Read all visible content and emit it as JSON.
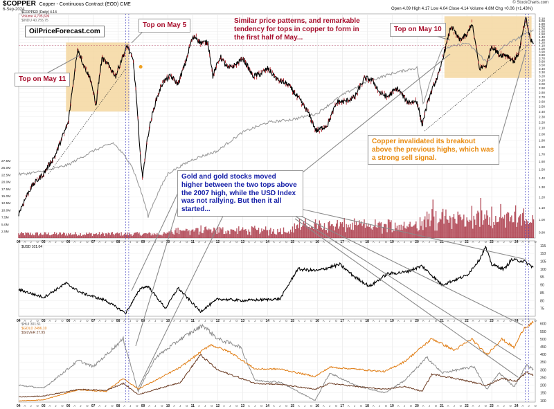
{
  "header": {
    "symbol": "$COPPER",
    "description": "Copper - Continuous Contract (EOD) CME",
    "date": "6-Sep-2024",
    "quote": "Open 4.09  High 4.17  Low 4.04  Close 4.14  Volume 4.8M  Chg +0.06 (+1.43%)",
    "brand": "© StockCharts.com",
    "watermark": "OilPriceForecast.com"
  },
  "legends": {
    "copper_line": "$COPPER (Daily) 4.14",
    "volume_line": "Volume 4,795,609",
    "indu_line": "$INDU 40,755.75",
    "usd_line": "$USD 101.04",
    "hui_line": "$HUI 301.51",
    "gold_line": "$GOLD 2496.10",
    "silver_line": "$SILVER 27.95"
  },
  "annotations": {
    "top_may5": "Top on May 5",
    "top_may11": "Top on May 11",
    "top_may10": "Top on May 10",
    "similar": "Similar price patterns, and remarkable tendency for tops in copper to form in the first half of May...",
    "gold": "Gold and gold stocks moved higher between the two tops above the 2007 high, while the USD Index was not rallying. But then it all started...",
    "copper_invalid": "Copper invalidated its breakout above the previous highs, which was a strong sell signal."
  },
  "colors": {
    "copper": "#000000",
    "copper_up": "#000000",
    "copper_down": "#b11b25",
    "indu": "#9b9b9b",
    "volume": "#a52a3a",
    "usd": "#000000",
    "hui": "#8b8b8b",
    "gold": "#e07b10",
    "silver": "#6a3a21",
    "highlight": "#f5d7a0",
    "annotation_red": "#a8102e",
    "annotation_blue": "#1620a8",
    "annotation_orange": "#e98b10",
    "guide_blue": "#3b3bbf"
  },
  "chart_data": [
    {
      "type": "line",
      "panel": "copper",
      "title": "$COPPER",
      "y_scale": "log",
      "y_axis_right": [
        0.9,
        1.0,
        1.1,
        1.2,
        1.3,
        1.4,
        1.5,
        1.6,
        1.7,
        1.8,
        1.9,
        2.0,
        2.1,
        2.2,
        2.3,
        2.4,
        2.5,
        2.6,
        2.7,
        2.8,
        2.9,
        3.0,
        3.1,
        3.2,
        3.3,
        3.4,
        3.5,
        3.6,
        3.7,
        3.8,
        3.9,
        4.0,
        4.1,
        4.2,
        4.3,
        4.4,
        4.5,
        4.6,
        4.7,
        4.8,
        4.9,
        5.0,
        5.1
      ],
      "volume_axis_left": [
        "2.5M",
        "5.0M",
        "7.5M",
        "10.0M",
        "12.5M",
        "15.0M",
        "17.5M",
        "20.0M",
        "22.5M",
        "25.0M",
        "27.5M"
      ],
      "x_year_labels": [
        "04",
        "05",
        "06",
        "07",
        "08",
        "09",
        "10",
        "11",
        "12",
        "13",
        "14",
        "15",
        "16",
        "17",
        "18",
        "19",
        "20",
        "21",
        "22",
        "23",
        "24"
      ],
      "series": [
        {
          "name": "$COPPER (Daily) 4.14",
          "x": [
            2004.0,
            2004.5,
            2005.0,
            2005.5,
            2006.0,
            2006.25,
            2006.37,
            2006.6,
            2006.9,
            2007.1,
            2007.35,
            2007.6,
            2007.9,
            2008.1,
            2008.37,
            2008.6,
            2008.85,
            2008.98,
            2009.2,
            2009.5,
            2009.8,
            2010.1,
            2010.4,
            2010.7,
            2010.95,
            2011.1,
            2011.3,
            2011.6,
            2011.8,
            2012.1,
            2012.4,
            2012.7,
            2013.0,
            2013.4,
            2013.7,
            2014.0,
            2014.4,
            2014.8,
            2015.2,
            2015.6,
            2015.95,
            2016.4,
            2016.8,
            2017.1,
            2017.5,
            2017.9,
            2018.2,
            2018.5,
            2018.8,
            2019.2,
            2019.6,
            2020.0,
            2020.2,
            2020.5,
            2020.9,
            2021.2,
            2021.36,
            2021.7,
            2022.0,
            2022.2,
            2022.5,
            2022.8,
            2023.0,
            2023.3,
            2023.6,
            2023.9,
            2024.1,
            2024.37,
            2024.55,
            2024.68
          ],
          "values": [
            1.05,
            1.3,
            1.45,
            1.7,
            2.2,
            3.3,
            4.0,
            3.5,
            3.1,
            2.5,
            3.7,
            3.5,
            3.2,
            3.6,
            4.1,
            3.6,
            1.8,
            1.4,
            2.0,
            2.6,
            3.05,
            3.2,
            3.0,
            3.55,
            4.3,
            4.4,
            4.2,
            4.2,
            3.2,
            3.75,
            3.4,
            3.5,
            3.7,
            3.2,
            3.25,
            3.4,
            3.1,
            3.0,
            2.7,
            2.4,
            2.05,
            2.15,
            2.6,
            2.6,
            2.7,
            3.15,
            3.1,
            2.8,
            2.7,
            2.9,
            2.6,
            2.6,
            2.15,
            2.7,
            3.3,
            4.2,
            4.8,
            4.3,
            4.45,
            4.9,
            3.4,
            3.5,
            4.1,
            3.8,
            3.8,
            3.6,
            3.9,
            5.1,
            4.3,
            4.14
          ]
        },
        {
          "name": "$INDU 40,755.75",
          "x": [
            2004.0,
            2005.0,
            2006.0,
            2007.0,
            2007.8,
            2008.5,
            2009.2,
            2010.0,
            2011.0,
            2012.0,
            2013.0,
            2014.0,
            2015.0,
            2016.0,
            2017.0,
            2018.0,
            2019.0,
            2020.0,
            2020.25,
            2021.0,
            2022.0,
            2022.8,
            2023.5,
            2024.68
          ],
          "values": [
            10400,
            10700,
            11400,
            13000,
            14000,
            11500,
            7000,
            10500,
            12000,
            13000,
            15500,
            17000,
            17500,
            18500,
            22000,
            25000,
            27000,
            28500,
            20000,
            34000,
            36000,
            30000,
            35000,
            40755
          ]
        }
      ]
    },
    {
      "type": "line",
      "panel": "usd",
      "title": "$USD 101.04",
      "y_axis_right": [
        75,
        80,
        85,
        90,
        95,
        100,
        105,
        110,
        115
      ],
      "series": [
        {
          "name": "$USD 101.04",
          "x": [
            2004.0,
            2005.0,
            2005.9,
            2006.5,
            2007.5,
            2008.3,
            2008.9,
            2009.2,
            2009.9,
            2010.4,
            2011.3,
            2012.0,
            2013.0,
            2014.5,
            2015.2,
            2016.0,
            2016.9,
            2017.5,
            2018.1,
            2018.8,
            2019.5,
            2020.2,
            2021.0,
            2021.5,
            2022.0,
            2022.5,
            2022.75,
            2023.0,
            2023.5,
            2023.8,
            2024.3,
            2024.68
          ],
          "values": [
            87,
            82,
            91,
            85,
            80,
            72,
            88,
            89,
            75,
            88,
            73,
            81,
            80,
            81,
            100,
            99,
            103,
            95,
            89,
            97,
            98,
            102,
            90,
            93,
            96,
            106,
            114,
            103,
            100,
            106,
            105,
            101.04
          ]
        }
      ]
    },
    {
      "type": "line",
      "panel": "metals",
      "y_axis_right": [
        100,
        150,
        200,
        250,
        300,
        350,
        400,
        450,
        500,
        550,
        600
      ],
      "series": [
        {
          "name": "$HUI 301.51",
          "x": [
            2004.0,
            2005.0,
            2006.4,
            2007.0,
            2008.2,
            2008.8,
            2009.5,
            2010.5,
            2011.4,
            2012.0,
            2012.9,
            2013.5,
            2014.5,
            2015.9,
            2016.5,
            2017.5,
            2018.7,
            2019.5,
            2020.4,
            2021.0,
            2022.3,
            2022.8,
            2023.3,
            2023.9,
            2024.4,
            2024.68
          ],
          "values": [
            200,
            180,
            360,
            320,
            500,
            160,
            380,
            500,
            590,
            500,
            450,
            230,
            220,
            100,
            280,
            200,
            150,
            230,
            380,
            280,
            320,
            170,
            280,
            190,
            330,
            301.51
          ]
        },
        {
          "name": "$GOLD 2496.10",
          "x": [
            2004.0,
            2005.0,
            2006.4,
            2007.5,
            2008.2,
            2008.8,
            2009.5,
            2010.5,
            2011.7,
            2012.5,
            2013.5,
            2014.5,
            2015.9,
            2016.5,
            2017.5,
            2018.7,
            2019.5,
            2020.6,
            2021.5,
            2022.2,
            2022.8,
            2023.4,
            2023.9,
            2024.3,
            2024.68
          ],
          "values": [
            400,
            430,
            700,
            650,
            1000,
            720,
            950,
            1300,
            1900,
            1700,
            1250,
            1250,
            1050,
            1300,
            1250,
            1180,
            1450,
            2060,
            1750,
            2050,
            1630,
            2050,
            1820,
            2350,
            2496.1
          ]
        },
        {
          "name": "$SILVER 27.95",
          "x": [
            2004.0,
            2005.0,
            2006.4,
            2007.5,
            2008.2,
            2008.8,
            2009.5,
            2010.5,
            2011.3,
            2012.0,
            2013.5,
            2014.5,
            2015.9,
            2016.5,
            2017.5,
            2018.7,
            2019.5,
            2020.2,
            2020.6,
            2021.5,
            2022.8,
            2023.4,
            2024.0,
            2024.4,
            2024.68
          ],
          "values": [
            6.5,
            7.5,
            14,
            13,
            20,
            9,
            14,
            21,
            48,
            33,
            20,
            19,
            14,
            20,
            17,
            14,
            17,
            12,
            29,
            25,
            18,
            25,
            22,
            31,
            27.95
          ]
        }
      ]
    }
  ],
  "axes": {
    "metals_y_axis": [
      100,
      150,
      200,
      250,
      300,
      350,
      400,
      450,
      500,
      550,
      600
    ],
    "month_letters": "A J O",
    "year_labels": [
      "04",
      "05",
      "06",
      "07",
      "08",
      "09",
      "10",
      "11",
      "12",
      "13",
      "14",
      "15",
      "16",
      "17",
      "18",
      "19",
      "20",
      "21",
      "22",
      "23",
      "24"
    ]
  }
}
